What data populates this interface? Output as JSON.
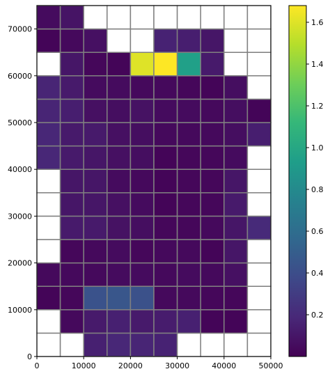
{
  "chart_data": {
    "type": "heatmap",
    "x_edges": [
      0,
      5000,
      10000,
      15000,
      20000,
      25000,
      30000,
      35000,
      40000,
      45000,
      50000
    ],
    "y_edges": [
      0,
      5000,
      10000,
      15000,
      20000,
      25000,
      30000,
      35000,
      40000,
      45000,
      50000,
      55000,
      60000,
      65000,
      70000,
      75000
    ],
    "xlim": [
      0,
      50000
    ],
    "ylim": [
      0,
      75000
    ],
    "x_ticks": [
      "0",
      "10000",
      "20000",
      "30000",
      "40000",
      "50000"
    ],
    "y_ticks": [
      "0",
      "10000",
      "20000",
      "30000",
      "40000",
      "50000",
      "60000",
      "70000"
    ],
    "colorbar_ticks": [
      "0.2",
      "0.4",
      "0.6",
      "0.8",
      "1.0",
      "1.2",
      "1.4",
      "1.6"
    ],
    "colorbar_range": [
      0.0,
      1.68
    ],
    "colormap": "viridis",
    "missing_color": "#ffffff",
    "grid_color": "#808080",
    "grid": true,
    "values": [
      [
        null,
        null,
        0.15,
        0.18,
        0.17,
        0.16,
        null,
        null,
        null,
        null
      ],
      [
        null,
        0.04,
        0.12,
        0.15,
        0.12,
        0.13,
        0.15,
        0.02,
        0.02,
        null
      ],
      [
        0.02,
        0.03,
        0.43,
        0.45,
        0.42,
        0.04,
        0.04,
        0.03,
        0.03,
        null
      ],
      [
        0.04,
        0.04,
        0.04,
        0.05,
        0.05,
        0.04,
        0.05,
        0.04,
        0.07,
        null
      ],
      [
        null,
        0.03,
        0.04,
        0.05,
        0.03,
        0.04,
        0.04,
        0.02,
        0.1,
        null
      ],
      [
        null,
        0.12,
        0.12,
        0.08,
        0.06,
        0.03,
        0.03,
        0.04,
        0.1,
        0.2
      ],
      [
        null,
        0.1,
        0.1,
        0.07,
        0.05,
        0.02,
        0.03,
        0.03,
        0.12,
        null
      ],
      [
        null,
        0.1,
        0.1,
        0.05,
        0.04,
        0.02,
        0.03,
        0.03,
        0.1,
        null
      ],
      [
        0.18,
        0.12,
        0.1,
        0.07,
        0.06,
        0.02,
        0.03,
        0.03,
        0.05,
        null
      ],
      [
        0.18,
        0.12,
        0.12,
        0.07,
        0.06,
        0.04,
        0.04,
        0.04,
        0.06,
        0.14
      ],
      [
        0.17,
        0.14,
        0.07,
        0.06,
        0.08,
        0.05,
        0.05,
        0.04,
        0.06,
        0.02
      ],
      [
        0.17,
        0.12,
        0.05,
        0.05,
        0.04,
        0.04,
        0.03,
        0.02,
        0.06,
        null
      ],
      [
        null,
        0.1,
        0.03,
        0.02,
        1.6,
        1.68,
        0.95,
        0.12,
        null,
        null
      ],
      [
        0.02,
        0.04,
        0.07,
        null,
        null,
        0.16,
        0.14,
        0.1,
        null,
        null
      ],
      [
        0.05,
        0.09,
        null,
        null,
        null,
        null,
        null,
        null,
        null,
        null
      ]
    ]
  }
}
